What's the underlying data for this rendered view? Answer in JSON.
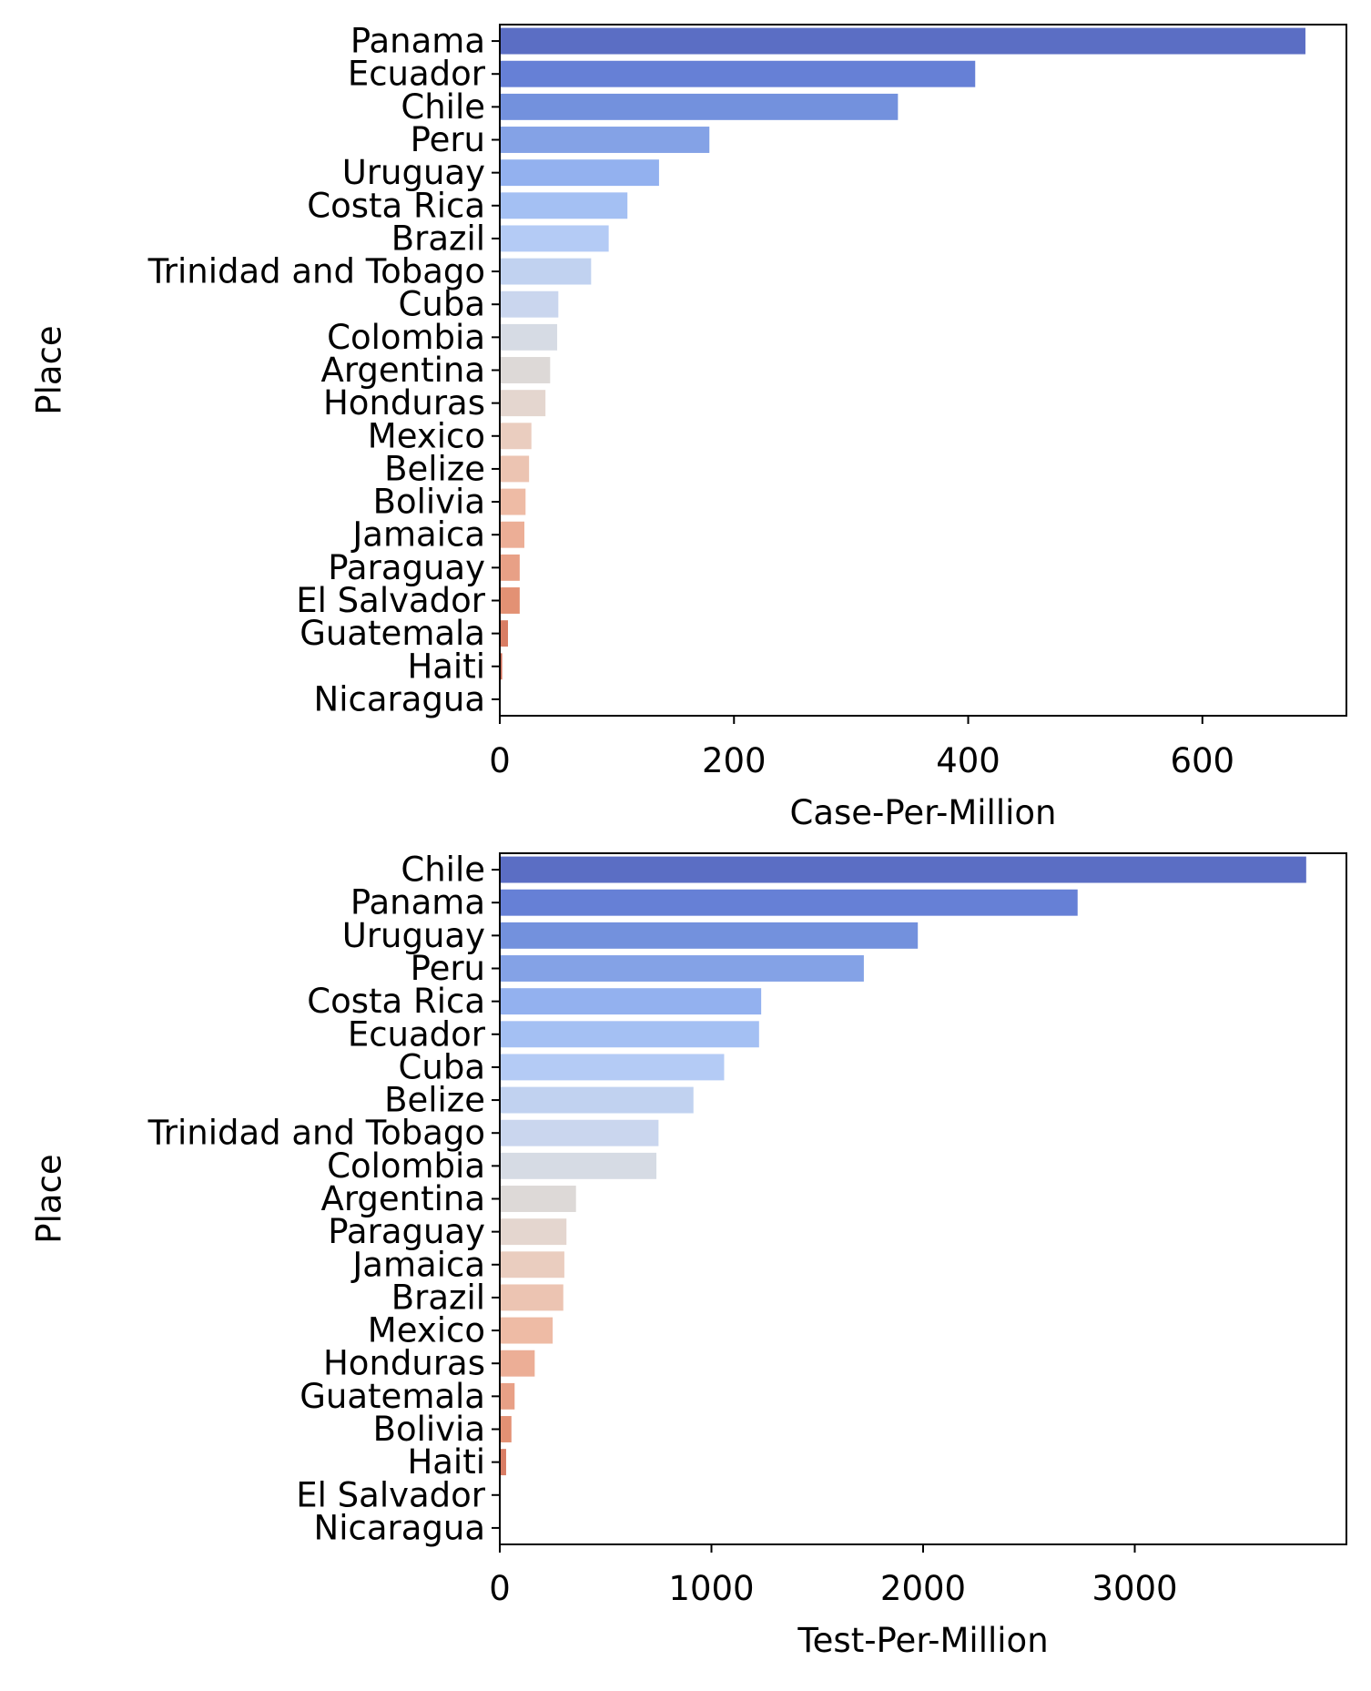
{
  "chart_data": [
    {
      "type": "bar",
      "orientation": "horizontal",
      "ylabel": "Place",
      "xlabel": "Case-Per-Million",
      "categories": [
        "Panama",
        "Ecuador",
        "Chile",
        "Peru",
        "Uruguay",
        "Costa Rica",
        "Brazil",
        "Trinidad and Tobago",
        "Cuba",
        "Colombia",
        "Argentina",
        "Honduras",
        "Mexico",
        "Belize",
        "Bolivia",
        "Jamaica",
        "Paraguay",
        "El Salvador",
        "Guatemala",
        "Haiti",
        "Nicaragua"
      ],
      "values": [
        688,
        406,
        340,
        179,
        136,
        109,
        93,
        78,
        50,
        49,
        43,
        39,
        27,
        25,
        22,
        21,
        17,
        17,
        7,
        2,
        0
      ],
      "xlim": [
        0,
        723
      ],
      "xticks": [
        0,
        200,
        400,
        600
      ],
      "grid": false,
      "palette": "coolwarm"
    },
    {
      "type": "bar",
      "orientation": "horizontal",
      "ylabel": "Place",
      "xlabel": "Test-Per-Million",
      "categories": [
        "Chile",
        "Panama",
        "Uruguay",
        "Peru",
        "Costa Rica",
        "Ecuador",
        "Cuba",
        "Belize",
        "Trinidad and Tobago",
        "Colombia",
        "Argentina",
        "Paraguay",
        "Jamaica",
        "Brazil",
        "Mexico",
        "Honduras",
        "Guatemala",
        "Bolivia",
        "Haiti",
        "El Salvador",
        "Nicaragua"
      ],
      "values": [
        3810,
        2730,
        1975,
        1720,
        1235,
        1225,
        1060,
        915,
        750,
        740,
        360,
        315,
        305,
        300,
        250,
        165,
        70,
        55,
        30,
        0,
        0
      ],
      "xlim": [
        0,
        4000
      ],
      "xticks": [
        0,
        1000,
        2000,
        3000
      ],
      "grid": false,
      "palette": "coolwarm"
    }
  ]
}
